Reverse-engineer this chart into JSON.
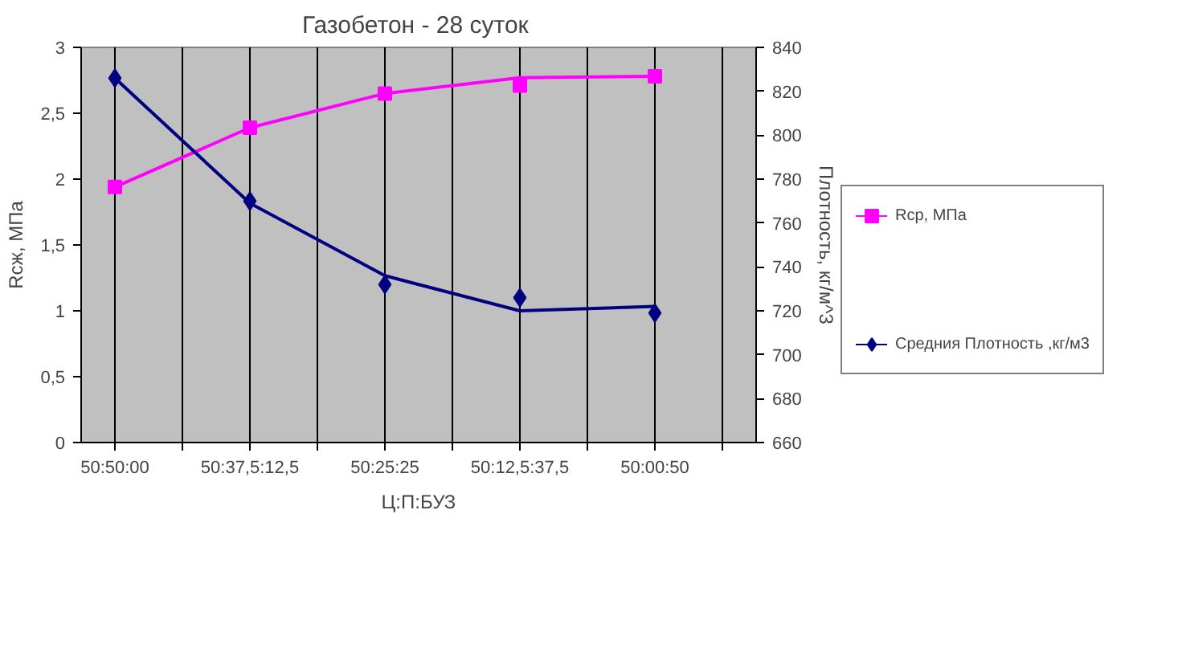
{
  "chart_data": {
    "type": "scatter",
    "title": "Газобетон  - 28 суток",
    "xlabel": "Ц:П:БУЗ",
    "ylabel": "Rсж, МПа",
    "y2label": "Плотность, кг/м^3",
    "categories": [
      "50:50:00",
      "50:37,5:12,5",
      "50:25:25",
      "50:12,5:37,5",
      "50:00:50"
    ],
    "ylim": [
      0,
      3
    ],
    "yticks": [
      {
        "value": 0,
        "label": "0"
      },
      {
        "value": 0.5,
        "label": "0,5"
      },
      {
        "value": 1,
        "label": "1"
      },
      {
        "value": 1.5,
        "label": "1,5"
      },
      {
        "value": 2,
        "label": "2"
      },
      {
        "value": 2.5,
        "label": "2,5"
      },
      {
        "value": 3,
        "label": "3"
      }
    ],
    "y2lim": [
      660,
      840
    ],
    "y2ticks": [
      660,
      680,
      700,
      720,
      740,
      760,
      780,
      800,
      820,
      840
    ],
    "grid": "x",
    "legend": "right",
    "series": [
      {
        "name": "Rср, МПа",
        "marker": "square",
        "color": "#ff00ff",
        "values": [
          1.94,
          2.39,
          2.65,
          2.71,
          2.78
        ]
      },
      {
        "type": "line",
        "color": "#ff00ff",
        "values": [
          1.94,
          2.39,
          2.65,
          2.77,
          2.78
        ]
      },
      {
        "name": "Средния Плотность ,кг/м3",
        "marker": "diamond",
        "axis": "y2",
        "color": "#000080",
        "values": [
          826,
          770,
          732,
          726,
          719
        ]
      },
      {
        "type": "line",
        "color": "#000080",
        "axis": "y2",
        "values": [
          826,
          769,
          736,
          720,
          722
        ]
      }
    ]
  }
}
